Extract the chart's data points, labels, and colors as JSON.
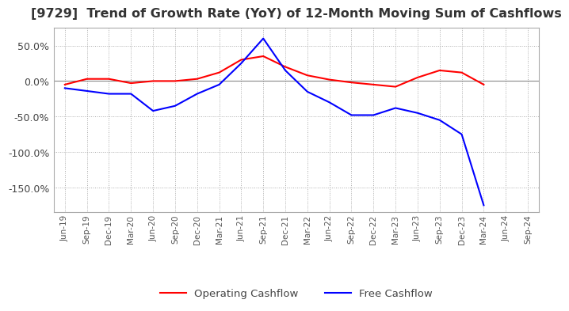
{
  "title": "[9729]  Trend of Growth Rate (YoY) of 12-Month Moving Sum of Cashflows",
  "title_fontsize": 11.5,
  "ylim": [
    -185,
    75
  ],
  "yticks": [
    50.0,
    0.0,
    -50.0,
    -100.0,
    -150.0
  ],
  "background_color": "#ffffff",
  "grid_color": "#aaaaaa",
  "x_labels": [
    "Jun-19",
    "Sep-19",
    "Dec-19",
    "Mar-20",
    "Jun-20",
    "Sep-20",
    "Dec-20",
    "Mar-21",
    "Jun-21",
    "Sep-21",
    "Dec-21",
    "Mar-22",
    "Jun-22",
    "Sep-22",
    "Dec-22",
    "Mar-23",
    "Jun-23",
    "Sep-23",
    "Dec-23",
    "Mar-24",
    "Jun-24",
    "Sep-24"
  ],
  "operating_cashflow_x": [
    0,
    1,
    2,
    3,
    4,
    5,
    6,
    7,
    8,
    9,
    10,
    11,
    12,
    13,
    14,
    15,
    16,
    17,
    18,
    19
  ],
  "operating_cashflow": [
    -5,
    3,
    3,
    -3,
    0,
    0,
    3,
    12,
    30,
    35,
    20,
    8,
    2,
    -2,
    -5,
    -8,
    5,
    15,
    12,
    -5
  ],
  "free_cashflow_x": [
    0,
    1,
    2,
    3,
    4,
    5,
    6,
    7,
    8,
    9,
    10,
    11,
    12,
    13,
    14,
    15,
    16,
    17,
    18,
    19
  ],
  "free_cashflow": [
    -10,
    -14,
    -18,
    -18,
    -42,
    -35,
    -18,
    -5,
    25,
    60,
    15,
    -15,
    -30,
    -48,
    -48,
    -38,
    -45,
    -55,
    -75,
    -175
  ],
  "operating_color": "#ff0000",
  "free_color": "#0000ff",
  "line_width": 1.5
}
